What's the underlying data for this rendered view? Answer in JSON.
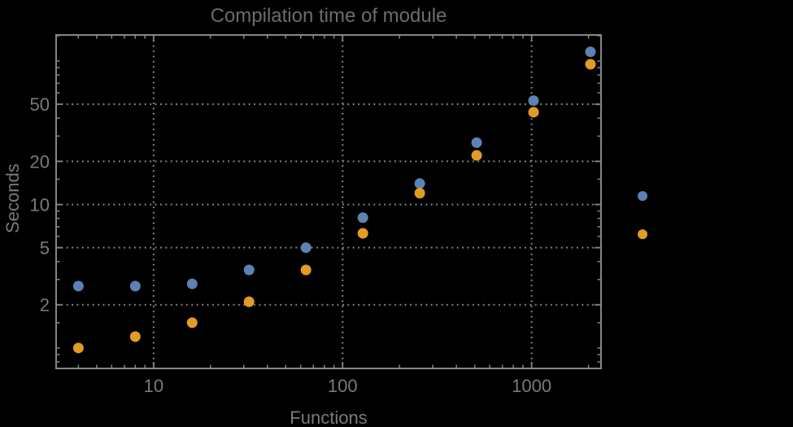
{
  "chart_data": {
    "type": "scatter",
    "title": "Compilation time of module",
    "xlabel": "Functions",
    "ylabel": "Seconds",
    "x_scale": "log",
    "y_scale": "log",
    "xlim": [
      3.05,
      2330
    ],
    "ylim": [
      0.72,
      152
    ],
    "grid": "dotted lines at labeled major ticks",
    "x": [
      4,
      8,
      16,
      32,
      64,
      128,
      256,
      512,
      1024,
      2048
    ],
    "series": [
      {
        "name": "series-1",
        "marker": "disk",
        "marker_color": "#5E81B5",
        "values": [
          2.7,
          2.7,
          2.8,
          3.5,
          5.0,
          8.1,
          14,
          27,
          53,
          116
        ]
      },
      {
        "name": "series-2",
        "marker": "disk",
        "marker_color": "#E19C24",
        "values": [
          1.0,
          1.2,
          1.5,
          2.1,
          3.5,
          6.3,
          12,
          22,
          44,
          95
        ]
      }
    ],
    "x_ticks": [
      {
        "value": 10,
        "label": "10"
      },
      {
        "value": 100,
        "label": "100"
      },
      {
        "value": 1000,
        "label": "1000"
      }
    ],
    "y_ticks": [
      {
        "value": 2,
        "label": "2"
      },
      {
        "value": 5,
        "label": "5"
      },
      {
        "value": 10,
        "label": "10"
      },
      {
        "value": 20,
        "label": "20"
      },
      {
        "value": 50,
        "label": "50"
      }
    ],
    "x_minor_ticks": [
      4,
      5,
      6,
      7,
      8,
      9,
      20,
      30,
      40,
      50,
      60,
      70,
      80,
      90,
      200,
      300,
      400,
      500,
      600,
      700,
      800,
      900,
      2000
    ],
    "y_minor_ticks": [
      0.8,
      0.9,
      1,
      1.5,
      3,
      4,
      6,
      7,
      8,
      9,
      15,
      30,
      40,
      60,
      70,
      80,
      90,
      100,
      150
    ],
    "legend": {
      "position": "right-outside",
      "entries": [
        {
          "marker_color": "#5E81B5"
        },
        {
          "marker_color": "#E19C24"
        }
      ]
    }
  },
  "colors": {
    "background": "#000000",
    "frame": "#868686",
    "grid": "#8F8F8F",
    "title_text": "#6C6C6C",
    "label_text": "#7A7A7A",
    "series_1": "#5E81B5",
    "series_2": "#E19C24"
  }
}
